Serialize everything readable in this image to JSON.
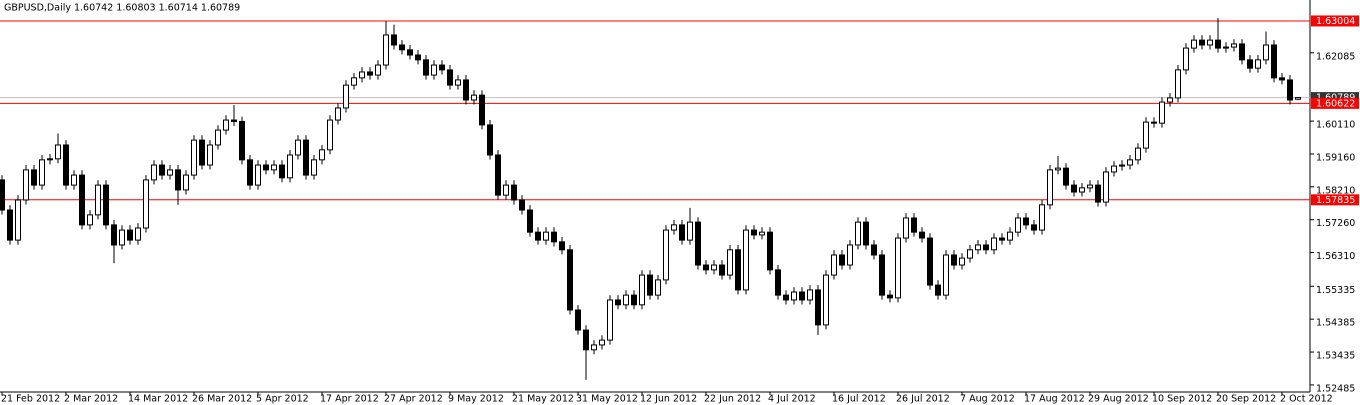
{
  "chart_data": {
    "type": "candlestick",
    "title": "GBPUSD,Daily  1.60742 1.60803 1.60714 1.60789",
    "categories": [
      "21 Feb 2012",
      null,
      null,
      null,
      null,
      null,
      null,
      null,
      "2 Mar 2012",
      null,
      null,
      null,
      null,
      null,
      null,
      null,
      "14 Mar 2012",
      null,
      null,
      null,
      null,
      null,
      null,
      null,
      "26 Mar 2012",
      null,
      null,
      null,
      null,
      null,
      null,
      null,
      "5 Apr 2012",
      null,
      null,
      null,
      null,
      null,
      null,
      null,
      "17 Apr 2012",
      null,
      null,
      null,
      null,
      null,
      null,
      null,
      "27 Apr 2012",
      null,
      null,
      null,
      null,
      null,
      null,
      null,
      "9 May 2012",
      null,
      null,
      null,
      null,
      null,
      null,
      null,
      "21 May 2012",
      null,
      null,
      null,
      null,
      null,
      null,
      null,
      "31 May 2012",
      null,
      null,
      null,
      null,
      null,
      null,
      null,
      "12 Jun 2012",
      null,
      null,
      null,
      null,
      null,
      null,
      null,
      "22 Jun 2012",
      null,
      null,
      null,
      null,
      null,
      null,
      null,
      "4 Jul 2012",
      null,
      null,
      null,
      null,
      null,
      null,
      null,
      "16 Jul 2012",
      null,
      null,
      null,
      null,
      null,
      null,
      null,
      "26 Jul 2012",
      null,
      null,
      null,
      null,
      null,
      null,
      null,
      "7 Aug 2012",
      null,
      null,
      null,
      null,
      null,
      null,
      null,
      "17 Aug 2012",
      null,
      null,
      null,
      null,
      null,
      null,
      null,
      "29 Aug 2012",
      null,
      null,
      null,
      null,
      null,
      null,
      null,
      "10 Sep 2012",
      null,
      null,
      null,
      null,
      null,
      null,
      null,
      "20 Sep 2012",
      null,
      null,
      null,
      null,
      null,
      null,
      null,
      "2 Oct 2012",
      null,
      null
    ],
    "open": [
      1.5841,
      1.5754,
      1.5667,
      1.5783,
      1.587,
      1.5826,
      1.5899,
      1.5902,
      1.5942,
      1.5826,
      1.5855,
      1.5711,
      1.574,
      1.5826,
      1.5711,
      1.5653,
      1.5696,
      1.5667,
      1.5702,
      1.5841,
      1.5884,
      1.5855,
      1.587,
      1.5812,
      1.5855,
      1.5956,
      1.5884,
      1.5942,
      1.5985,
      1.6014,
      1.601,
      1.5899,
      1.5826,
      1.5884,
      1.587,
      1.5884,
      1.5847,
      1.5913,
      1.5956,
      1.5855,
      1.5899,
      1.5928,
      1.6014,
      1.6049,
      1.6115,
      1.6136,
      1.6153,
      1.6144,
      1.6173,
      1.626,
      1.6231,
      1.6217,
      1.6202,
      1.6188,
      1.6144,
      1.6173,
      1.6159,
      1.6115,
      1.613,
      1.6072,
      1.6086,
      1.6,
      1.5913,
      1.5797,
      1.5826,
      1.5783,
      1.5754,
      1.569,
      1.5667,
      1.569,
      1.5662,
      1.5639,
      1.5465,
      1.5407,
      1.535,
      1.5364,
      1.5378,
      1.5494,
      1.548,
      1.5508,
      1.548,
      1.5566,
      1.5508,
      1.5552,
      1.5696,
      1.5711,
      1.5667,
      1.5719,
      1.5595,
      1.5581,
      1.5595,
      1.5566,
      1.5639,
      1.5523,
      1.5696,
      1.5682,
      1.569,
      1.5581,
      1.5508,
      1.5494,
      1.5517,
      1.5494,
      1.5523,
      1.5422,
      1.5566,
      1.5624,
      1.5595,
      1.5653,
      1.5719,
      1.5653,
      1.5624,
      1.5508,
      1.55,
      1.5673,
      1.5731,
      1.569,
      1.5673,
      1.5537,
      1.5508,
      1.5624,
      1.5595,
      1.5615,
      1.5639,
      1.5653,
      1.5639,
      1.5673,
      1.5667,
      1.569,
      1.5731,
      1.5711,
      1.5696,
      1.5769,
      1.587,
      1.5875,
      1.5826,
      1.5806,
      1.5818,
      1.5826,
      1.5777,
      1.5864,
      1.5881,
      1.5884,
      1.5899,
      1.5933,
      1.6008,
      1.6005,
      1.6066,
      1.6078,
      1.6159,
      1.6222,
      1.6245,
      1.6231,
      1.6245,
      1.6222,
      1.6225,
      1.6234,
      1.6188,
      1.6164,
      1.6188,
      1.6231,
      1.6136,
      1.613,
      1.60742
    ],
    "high": [
      1.5855,
      1.5768,
      1.5797,
      1.5884,
      1.5884,
      1.5913,
      1.5916,
      1.5975,
      1.5956,
      1.5869,
      1.5869,
      1.5754,
      1.584,
      1.584,
      1.5725,
      1.571,
      1.571,
      1.5716,
      1.5855,
      1.5898,
      1.5898,
      1.5884,
      1.5884,
      1.5869,
      1.597,
      1.597,
      1.5956,
      1.5999,
      1.6028,
      1.6057,
      1.6024,
      1.5913,
      1.5898,
      1.5898,
      1.5898,
      1.5898,
      1.5927,
      1.597,
      1.597,
      1.5913,
      1.5942,
      1.6028,
      1.6063,
      1.6129,
      1.615,
      1.6167,
      1.6167,
      1.6187,
      1.63,
      1.629,
      1.6245,
      1.6231,
      1.6216,
      1.6202,
      1.6187,
      1.6187,
      1.6173,
      1.6144,
      1.6144,
      1.61,
      1.61,
      1.6014,
      1.5927,
      1.584,
      1.584,
      1.5797,
      1.5768,
      1.5704,
      1.5704,
      1.5704,
      1.5676,
      1.5653,
      1.5479,
      1.5421,
      1.5378,
      1.5392,
      1.5508,
      1.5508,
      1.5522,
      1.5522,
      1.558,
      1.558,
      1.5566,
      1.571,
      1.5725,
      1.5725,
      1.576,
      1.5733,
      1.5609,
      1.5609,
      1.5609,
      1.5653,
      1.5653,
      1.571,
      1.571,
      1.5704,
      1.5704,
      1.5595,
      1.5522,
      1.5531,
      1.5531,
      1.5537,
      1.5537,
      1.558,
      1.5638,
      1.5638,
      1.5667,
      1.5733,
      1.5733,
      1.5667,
      1.5638,
      1.5522,
      1.5687,
      1.5745,
      1.5745,
      1.5704,
      1.5687,
      1.5551,
      1.5638,
      1.5638,
      1.5629,
      1.5653,
      1.5667,
      1.5667,
      1.5687,
      1.5687,
      1.5704,
      1.5745,
      1.5745,
      1.5725,
      1.5783,
      1.5884,
      1.591,
      1.5889,
      1.584,
      1.5832,
      1.584,
      1.584,
      1.5878,
      1.5895,
      1.5898,
      1.5913,
      1.5947,
      1.6022,
      1.6022,
      1.608,
      1.6092,
      1.6173,
      1.6236,
      1.6259,
      1.6259,
      1.6259,
      1.6309,
      1.6239,
      1.6248,
      1.6248,
      1.6202,
      1.6202,
      1.627,
      1.6245,
      1.615,
      1.6144,
      1.60803
    ],
    "low": [
      1.5741,
      1.5654,
      1.5654,
      1.577,
      1.5813,
      1.5813,
      1.5886,
      1.5889,
      1.5813,
      1.5813,
      1.5698,
      1.5698,
      1.5727,
      1.5698,
      1.56,
      1.564,
      1.5654,
      1.5654,
      1.5689,
      1.5828,
      1.5842,
      1.5842,
      1.5769,
      1.5799,
      1.5842,
      1.5871,
      1.5871,
      1.5929,
      1.5972,
      1.5997,
      1.5886,
      1.5813,
      1.5813,
      1.5857,
      1.5857,
      1.5834,
      1.5834,
      1.59,
      1.5842,
      1.5842,
      1.5886,
      1.5915,
      1.6001,
      1.6036,
      1.6102,
      1.6123,
      1.6131,
      1.6131,
      1.616,
      1.6218,
      1.6204,
      1.6189,
      1.6175,
      1.6131,
      1.6131,
      1.6146,
      1.6102,
      1.6102,
      1.6059,
      1.6059,
      1.5987,
      1.59,
      1.5784,
      1.5784,
      1.577,
      1.5741,
      1.5677,
      1.5654,
      1.5654,
      1.5649,
      1.5626,
      1.5452,
      1.5394,
      1.5263,
      1.5337,
      1.5351,
      1.5365,
      1.5467,
      1.5467,
      1.5467,
      1.5467,
      1.5495,
      1.5495,
      1.5539,
      1.5683,
      1.5654,
      1.5654,
      1.5582,
      1.5568,
      1.5568,
      1.5553,
      1.5553,
      1.551,
      1.551,
      1.5669,
      1.5669,
      1.5568,
      1.5495,
      1.5481,
      1.5481,
      1.5481,
      1.5481,
      1.5393,
      1.5409,
      1.5553,
      1.5582,
      1.5582,
      1.564,
      1.564,
      1.5611,
      1.5495,
      1.5487,
      1.5487,
      1.566,
      1.5677,
      1.566,
      1.5524,
      1.5495,
      1.5495,
      1.5582,
      1.5582,
      1.5602,
      1.5626,
      1.5626,
      1.5626,
      1.5654,
      1.5654,
      1.5677,
      1.5698,
      1.5683,
      1.5683,
      1.5756,
      1.5857,
      1.5813,
      1.5793,
      1.5793,
      1.5805,
      1.5764,
      1.5764,
      1.5851,
      1.5868,
      1.5871,
      1.5886,
      1.592,
      1.5992,
      1.5992,
      1.6053,
      1.6065,
      1.6146,
      1.6209,
      1.6218,
      1.6218,
      1.6209,
      1.6209,
      1.6212,
      1.6175,
      1.6151,
      1.6151,
      1.6175,
      1.6123,
      1.6117,
      1.6059,
      1.60714
    ],
    "close": [
      1.5754,
      1.5667,
      1.5783,
      1.587,
      1.5826,
      1.5899,
      1.5902,
      1.5942,
      1.5826,
      1.5855,
      1.5711,
      1.574,
      1.5826,
      1.5711,
      1.5653,
      1.5696,
      1.5667,
      1.5702,
      1.5841,
      1.5884,
      1.5855,
      1.587,
      1.5812,
      1.5855,
      1.5956,
      1.5884,
      1.5942,
      1.5985,
      1.6014,
      1.601,
      1.5899,
      1.5826,
      1.5884,
      1.587,
      1.5884,
      1.5847,
      1.5913,
      1.5956,
      1.5855,
      1.5899,
      1.5928,
      1.6014,
      1.6049,
      1.6115,
      1.6136,
      1.6153,
      1.6144,
      1.6173,
      1.626,
      1.6231,
      1.6217,
      1.6202,
      1.6188,
      1.6144,
      1.6173,
      1.6159,
      1.6115,
      1.613,
      1.6072,
      1.6086,
      1.6,
      1.5913,
      1.5797,
      1.5826,
      1.5783,
      1.5754,
      1.569,
      1.5667,
      1.569,
      1.5662,
      1.5639,
      1.5465,
      1.5407,
      1.535,
      1.5364,
      1.5378,
      1.5494,
      1.548,
      1.5508,
      1.548,
      1.5566,
      1.5508,
      1.5552,
      1.5696,
      1.5711,
      1.5667,
      1.5719,
      1.5595,
      1.5581,
      1.5595,
      1.5566,
      1.5639,
      1.5523,
      1.5696,
      1.5682,
      1.569,
      1.5581,
      1.5508,
      1.5494,
      1.5517,
      1.5494,
      1.5523,
      1.5422,
      1.5566,
      1.5624,
      1.5595,
      1.5653,
      1.5719,
      1.5653,
      1.5624,
      1.5508,
      1.55,
      1.5673,
      1.5731,
      1.569,
      1.5673,
      1.5537,
      1.5508,
      1.5624,
      1.5595,
      1.5615,
      1.5639,
      1.5653,
      1.5639,
      1.5673,
      1.5667,
      1.569,
      1.5731,
      1.5711,
      1.5696,
      1.5769,
      1.587,
      1.5875,
      1.5826,
      1.5806,
      1.5818,
      1.5826,
      1.5777,
      1.5864,
      1.5881,
      1.5884,
      1.5899,
      1.5933,
      1.6008,
      1.6005,
      1.6066,
      1.6078,
      1.6159,
      1.6222,
      1.6245,
      1.6231,
      1.6245,
      1.6222,
      1.6225,
      1.6234,
      1.6188,
      1.6164,
      1.6188,
      1.6231,
      1.6136,
      1.613,
      1.6072,
      1.60789
    ],
    "bull_color": "#ffffff",
    "bear_color": "#000000",
    "ylim": [
      1.5228,
      1.6361
    ],
    "yticks": [
      1.62085,
      {
        "value": 1.6011,
        "label": "1.60110"
      },
      {
        "value": 1.5916,
        "label": "1.59160"
      },
      {
        "value": 1.5821,
        "label": "1.58210"
      },
      {
        "value": 1.5726,
        "label": "1.57260"
      },
      {
        "value": 1.5631,
        "label": "1.56310"
      },
      1.55335,
      1.54385,
      1.53435,
      1.52485
    ],
    "lines": [
      {
        "value": 1.63004,
        "color": "#ff0000"
      },
      {
        "value": 1.60789,
        "color": "#c0c0c0"
      },
      {
        "value": 1.60622,
        "color": "#ff0000"
      },
      {
        "value": 1.57835,
        "color": "#ff0000"
      }
    ],
    "grid": false
  }
}
